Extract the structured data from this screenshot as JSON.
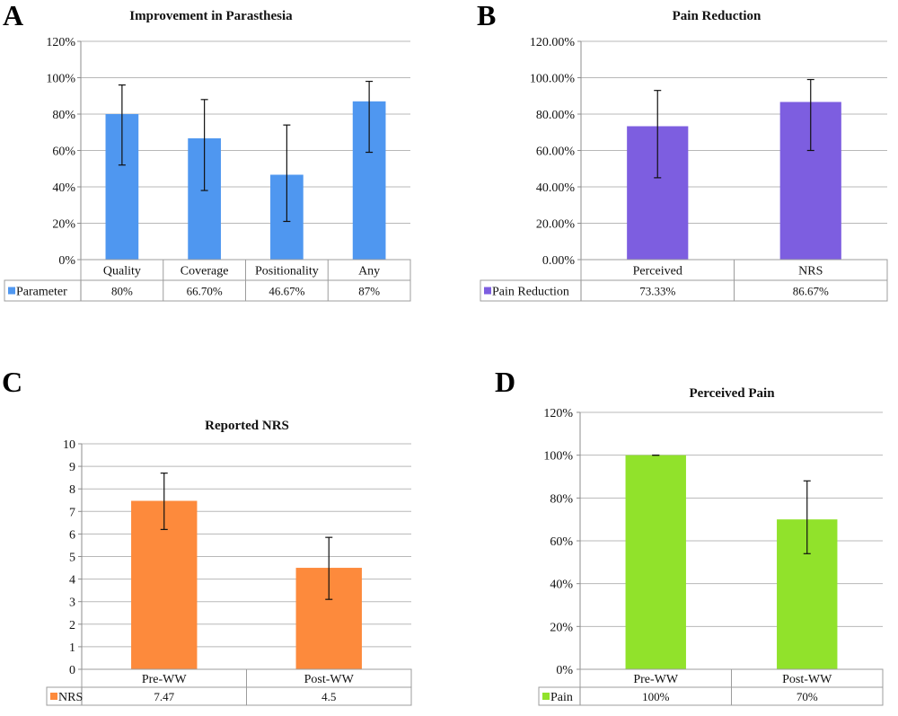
{
  "chart_data": [
    {
      "panel": "A",
      "type": "bar",
      "title": "Improvement in Parasthesia",
      "categories": [
        "Quality",
        "Coverage",
        "Positionality",
        "Any"
      ],
      "series": [
        {
          "name": "Parameter",
          "color": "#4f97f0",
          "values": [
            80,
            66.7,
            46.67,
            87
          ],
          "value_labels": [
            "80%",
            "66.70%",
            "46.67%",
            "87%"
          ],
          "error_bars": [
            {
              "low": 52,
              "high": 96
            },
            {
              "low": 38,
              "high": 88
            },
            {
              "low": 21,
              "high": 74
            },
            {
              "low": 59,
              "high": 98
            }
          ]
        }
      ],
      "ylim": [
        0,
        120
      ],
      "yticks": [
        {
          "value": 0,
          "label": "0%"
        },
        {
          "value": 20,
          "label": "20%"
        },
        {
          "value": 40,
          "label": "40%"
        },
        {
          "value": 60,
          "label": "60%"
        },
        {
          "value": 80,
          "label": "80%"
        },
        {
          "value": 100,
          "label": "100%"
        },
        {
          "value": 120,
          "label": "120%"
        }
      ],
      "grid": true,
      "legend": "bottom-left"
    },
    {
      "panel": "B",
      "type": "bar",
      "title": "Pain Reduction",
      "categories": [
        "Perceived",
        "NRS"
      ],
      "series": [
        {
          "name": "Pain Reduction",
          "color": "#7d5ee0",
          "values": [
            73.33,
            86.67
          ],
          "value_labels": [
            "73.33%",
            "86.67%"
          ],
          "error_bars": [
            {
              "low": 45,
              "high": 93
            },
            {
              "low": 60,
              "high": 99
            }
          ]
        }
      ],
      "ylim": [
        0,
        120
      ],
      "yticks": [
        {
          "value": 0,
          "label": "0.00%"
        },
        {
          "value": 20,
          "label": "20.00%"
        },
        {
          "value": 40,
          "label": "40.00%"
        },
        {
          "value": 60,
          "label": "60.00%"
        },
        {
          "value": 80,
          "label": "80.00%"
        },
        {
          "value": 100,
          "label": "100.00%"
        },
        {
          "value": 120,
          "label": "120.00%"
        }
      ],
      "grid": true,
      "legend": "bottom-left"
    },
    {
      "panel": "C",
      "type": "bar",
      "title": "Reported NRS",
      "categories": [
        "Pre-WW",
        "Post-WW"
      ],
      "series": [
        {
          "name": "NRS",
          "color": "#fd8a3c",
          "values": [
            7.47,
            4.5
          ],
          "value_labels": [
            "7.47",
            "4.5"
          ],
          "error_bars": [
            {
              "low": 6.2,
              "high": 8.7
            },
            {
              "low": 3.1,
              "high": 5.85
            }
          ]
        }
      ],
      "ylim": [
        0,
        10
      ],
      "yticks": [
        {
          "value": 0,
          "label": "0"
        },
        {
          "value": 1,
          "label": "1"
        },
        {
          "value": 2,
          "label": "2"
        },
        {
          "value": 3,
          "label": "3"
        },
        {
          "value": 4,
          "label": "4"
        },
        {
          "value": 5,
          "label": "5"
        },
        {
          "value": 6,
          "label": "6"
        },
        {
          "value": 7,
          "label": "7"
        },
        {
          "value": 8,
          "label": "8"
        },
        {
          "value": 9,
          "label": "9"
        },
        {
          "value": 10,
          "label": "10"
        }
      ],
      "grid": true,
      "legend": "bottom-left"
    },
    {
      "panel": "D",
      "type": "bar",
      "title": "Perceived Pain",
      "categories": [
        "Pre-WW",
        "Post-WW"
      ],
      "series": [
        {
          "name": "Pain",
          "color": "#91e22b",
          "values": [
            100,
            70
          ],
          "value_labels": [
            "100%",
            "70%"
          ],
          "error_bars": [
            {
              "low": 100,
              "high": 100
            },
            {
              "low": 54,
              "high": 88
            }
          ]
        }
      ],
      "ylim": [
        0,
        120
      ],
      "yticks": [
        {
          "value": 0,
          "label": "0%"
        },
        {
          "value": 20,
          "label": "20%"
        },
        {
          "value": 40,
          "label": "40%"
        },
        {
          "value": 60,
          "label": "60%"
        },
        {
          "value": 80,
          "label": "80%"
        },
        {
          "value": 100,
          "label": "100%"
        },
        {
          "value": 120,
          "label": "120%"
        }
      ],
      "grid": true,
      "legend": "bottom-left"
    }
  ]
}
